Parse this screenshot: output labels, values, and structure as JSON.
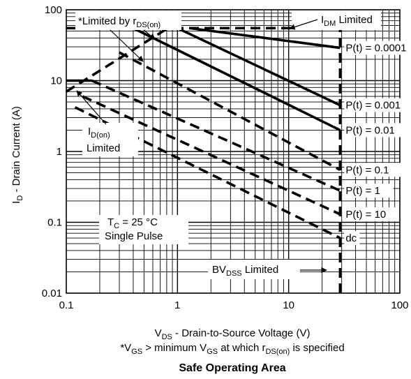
{
  "chart_data": {
    "type": "line",
    "title": "Safe Operating Area",
    "x_scale": "log",
    "y_scale": "log",
    "xlim": [
      0.1,
      100
    ],
    "ylim": [
      0.01,
      100
    ],
    "x_ticks": [
      "0.1",
      "1",
      "10",
      "100"
    ],
    "y_ticks": [
      "0.01",
      "0.1",
      "1",
      "10",
      "100"
    ],
    "xlabel": {
      "main": "V",
      "sub": "DS",
      "rest": " - Drain-to-Source Voltage (V)"
    },
    "ylabel": {
      "main": "I",
      "sub": "D",
      "rest": " - Drain Current (A)"
    },
    "footnote": {
      "p1": "*V",
      "s1": "GS",
      "p2": " > minimum V",
      "s2": "GS",
      "p3": " at which r",
      "s3": "DS(on)",
      "p4": " is specified"
    },
    "grid": true,
    "limits": {
      "rds_on_line": [
        [
          0.1,
          7.0
        ],
        [
          0.82,
          55
        ]
      ],
      "idm_limit": [
        [
          0.1,
          55
        ],
        [
          29,
          55
        ]
      ],
      "id_on_limit": [
        [
          0.1,
          10
        ],
        [
          0.17,
          10
        ]
      ],
      "bvdss_limit": [
        [
          29,
          0.01
        ],
        [
          29,
          55
        ]
      ]
    },
    "series": [
      {
        "name": "P(t) = 0.0001",
        "style": "solid",
        "points": [
          [
            1.3,
            55
          ],
          [
            29,
            29
          ]
        ]
      },
      {
        "name": "P(t) = 0.001",
        "style": "solid",
        "points": [
          [
            1.0,
            55
          ],
          [
            29,
            4.5
          ]
        ]
      },
      {
        "name": "P(t) = 0.01",
        "style": "solid",
        "points": [
          [
            0.4,
            55
          ],
          [
            29,
            2.0
          ]
        ]
      },
      {
        "name": "P(t) = 0.1",
        "style": "dashed",
        "points": [
          [
            0.3,
            25
          ],
          [
            29,
            0.55
          ]
        ]
      },
      {
        "name": "P(t) = 1",
        "style": "dashed",
        "points": [
          [
            0.17,
            10
          ],
          [
            29,
            0.28
          ]
        ]
      },
      {
        "name": "P(t) = 10",
        "style": "dashed",
        "points": [
          [
            0.14,
            6.0
          ],
          [
            29,
            0.13
          ]
        ]
      },
      {
        "name": "dc",
        "style": "dashed",
        "points": [
          [
            0.12,
            4.2
          ],
          [
            29,
            0.06
          ]
        ]
      }
    ],
    "annotations": {
      "rds_limit": {
        "main": "*Limited by r",
        "sub": "DS(on)"
      },
      "idm": {
        "main": "I",
        "sub": "DM",
        "rest": " Limited"
      },
      "id_on": {
        "main": "I",
        "sub": "D(on)",
        "line2": "Limited"
      },
      "tc_line1": {
        "main": "T",
        "sub": "C",
        "rest": " = 25 °C"
      },
      "tc_line2": "Single Pulse",
      "bvdss": {
        "main": "BV",
        "sub": "DSS",
        "rest": " Limited"
      }
    }
  }
}
